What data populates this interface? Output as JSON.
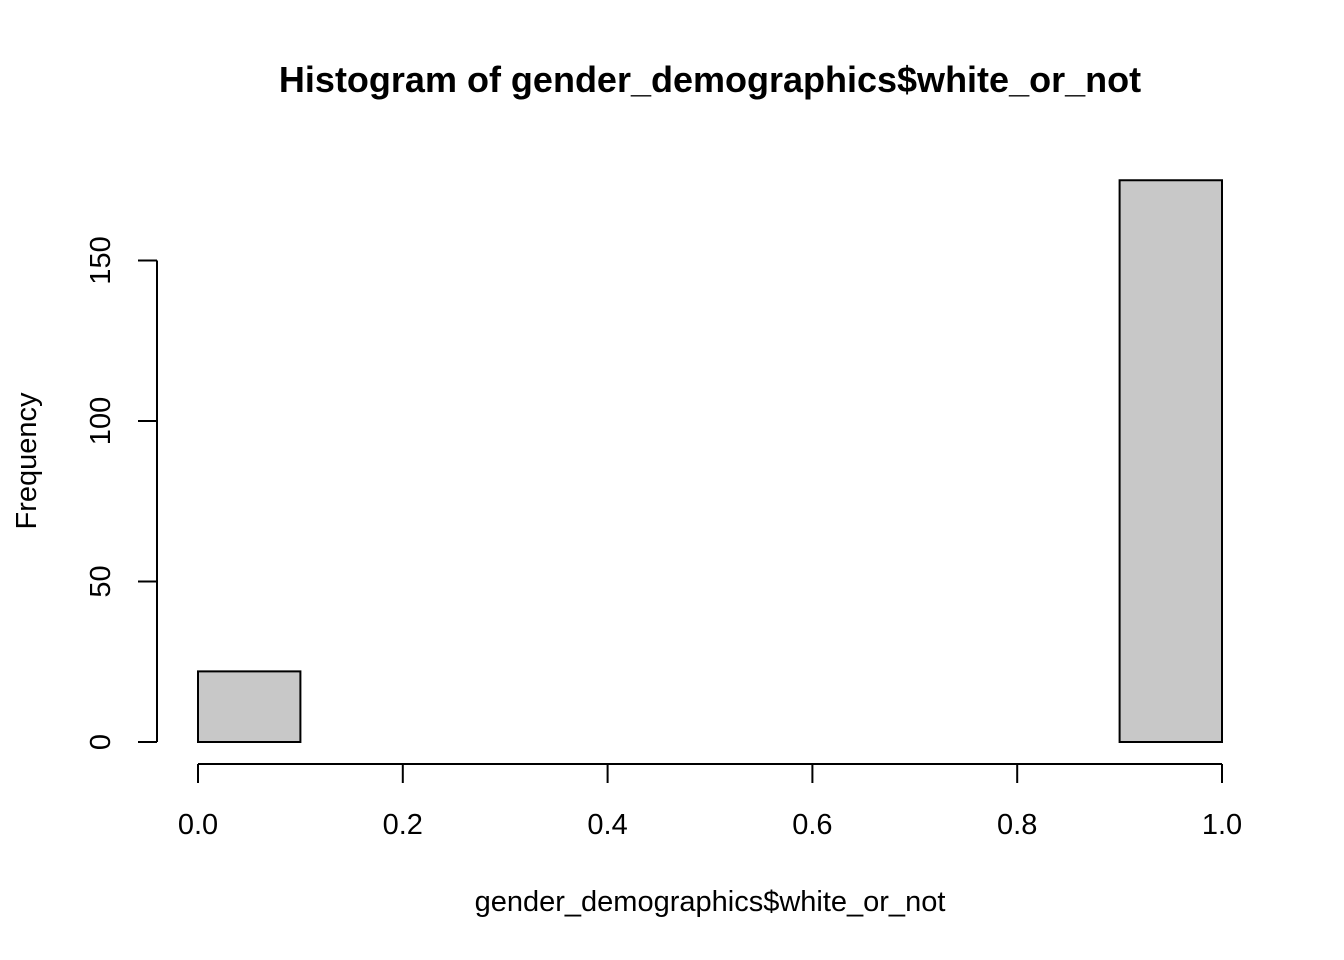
{
  "chart_data": {
    "type": "bar",
    "title": "Histogram of gender_demographics$white_or_not",
    "xlabel": "gender_demographics$white_or_not",
    "ylabel": "Frequency",
    "bins": [
      {
        "start": 0.0,
        "end": 0.1,
        "count": 22
      },
      {
        "start": 0.1,
        "end": 0.2,
        "count": 0
      },
      {
        "start": 0.2,
        "end": 0.3,
        "count": 0
      },
      {
        "start": 0.3,
        "end": 0.4,
        "count": 0
      },
      {
        "start": 0.4,
        "end": 0.5,
        "count": 0
      },
      {
        "start": 0.5,
        "end": 0.6,
        "count": 0
      },
      {
        "start": 0.6,
        "end": 0.7,
        "count": 0
      },
      {
        "start": 0.7,
        "end": 0.8,
        "count": 0
      },
      {
        "start": 0.8,
        "end": 0.9,
        "count": 0
      },
      {
        "start": 0.9,
        "end": 1.0,
        "count": 175
      }
    ],
    "xlim": [
      0.0,
      1.0
    ],
    "ylim": [
      0,
      175
    ],
    "x_ticks": [
      "0.0",
      "0.2",
      "0.4",
      "0.6",
      "0.8",
      "1.0"
    ],
    "y_ticks": [
      "0",
      "50",
      "100",
      "150"
    ],
    "grid": false,
    "bar_color": "#c8c8c8"
  }
}
